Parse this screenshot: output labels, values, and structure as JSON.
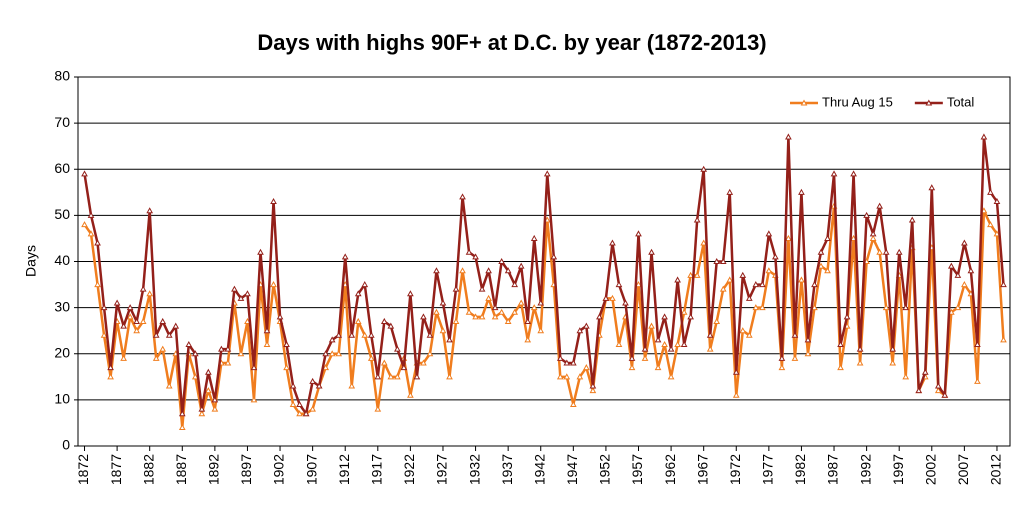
{
  "chart_data": {
    "type": "line",
    "title": "Days with highs 90F+ at D.C. by year (1872-2013)",
    "y_label": "Days",
    "legend": "upper right",
    "grid": true,
    "x": [
      1872,
      1873,
      1874,
      1875,
      1876,
      1877,
      1878,
      1879,
      1880,
      1881,
      1882,
      1883,
      1884,
      1885,
      1886,
      1887,
      1888,
      1889,
      1890,
      1891,
      1892,
      1893,
      1894,
      1895,
      1896,
      1897,
      1898,
      1899,
      1900,
      1901,
      1902,
      1903,
      1904,
      1905,
      1906,
      1907,
      1908,
      1909,
      1910,
      1911,
      1912,
      1913,
      1914,
      1915,
      1916,
      1917,
      1918,
      1919,
      1920,
      1921,
      1922,
      1923,
      1924,
      1925,
      1926,
      1927,
      1928,
      1929,
      1930,
      1931,
      1932,
      1933,
      1934,
      1935,
      1936,
      1937,
      1938,
      1939,
      1940,
      1941,
      1942,
      1943,
      1944,
      1945,
      1946,
      1947,
      1948,
      1949,
      1950,
      1951,
      1952,
      1953,
      1954,
      1955,
      1956,
      1957,
      1958,
      1959,
      1960,
      1961,
      1962,
      1963,
      1964,
      1965,
      1966,
      1967,
      1968,
      1969,
      1970,
      1971,
      1972,
      1973,
      1974,
      1975,
      1976,
      1977,
      1978,
      1979,
      1980,
      1981,
      1982,
      1983,
      1984,
      1985,
      1986,
      1987,
      1988,
      1989,
      1990,
      1991,
      1992,
      1993,
      1994,
      1995,
      1996,
      1997,
      1998,
      1999,
      2000,
      2001,
      2002,
      2003,
      2004,
      2005,
      2006,
      2007,
      2008,
      2009,
      2010,
      2011,
      2012,
      2013
    ],
    "xlim": [
      1871,
      2014
    ],
    "xticks": [
      1872,
      1877,
      1882,
      1887,
      1892,
      1897,
      1902,
      1907,
      1912,
      1917,
      1922,
      1927,
      1932,
      1937,
      1942,
      1947,
      1952,
      1957,
      1962,
      1967,
      1972,
      1977,
      1982,
      1987,
      1992,
      1997,
      2002,
      2007,
      2012
    ],
    "ylim": [
      0,
      80
    ],
    "yticks": [
      0,
      10,
      20,
      30,
      40,
      50,
      60,
      70,
      80
    ],
    "series": [
      {
        "name": "Thru Aug 15",
        "color": "#f07d1e",
        "values": [
          48,
          46,
          35,
          24,
          15,
          27,
          19,
          28,
          25,
          27,
          33,
          19,
          21,
          13,
          20,
          4,
          20,
          15,
          7,
          12,
          8,
          18,
          18,
          31,
          20,
          27,
          10,
          35,
          22,
          35,
          27,
          17,
          9,
          7,
          7,
          8,
          13,
          17,
          20,
          20,
          35,
          13,
          27,
          24,
          19,
          8,
          18,
          15,
          15,
          19,
          11,
          18,
          18,
          20,
          29,
          25,
          15,
          27,
          38,
          29,
          28,
          28,
          32,
          28,
          29,
          27,
          29,
          31,
          23,
          30,
          25,
          49,
          35,
          15,
          15,
          9,
          15,
          17,
          12,
          24,
          32,
          32,
          22,
          28,
          17,
          35,
          19,
          26,
          17,
          22,
          15,
          22,
          29,
          37,
          37,
          44,
          21,
          27,
          34,
          36,
          11,
          25,
          24,
          30,
          30,
          38,
          37,
          17,
          45,
          19,
          36,
          20,
          30,
          39,
          38,
          52,
          17,
          26,
          45,
          18,
          40,
          45,
          42,
          30,
          18,
          37,
          15,
          43,
          12,
          15,
          43,
          12,
          11,
          29,
          30,
          35,
          33,
          14,
          51,
          48,
          46,
          23
        ]
      },
      {
        "name": "Total",
        "color": "#94201a",
        "values": [
          59,
          50,
          44,
          30,
          17,
          31,
          26,
          30,
          27,
          34,
          51,
          24,
          27,
          24,
          26,
          7,
          22,
          20,
          8,
          16,
          10,
          21,
          21,
          34,
          32,
          33,
          17,
          42,
          25,
          53,
          28,
          22,
          13,
          9,
          7,
          14,
          13,
          20,
          23,
          24,
          41,
          24,
          33,
          35,
          24,
          15,
          27,
          26,
          21,
          17,
          33,
          15,
          28,
          24,
          38,
          31,
          23,
          34,
          54,
          42,
          41,
          34,
          38,
          30,
          40,
          38,
          35,
          39,
          27,
          45,
          31,
          59,
          41,
          19,
          18,
          18,
          25,
          26,
          13,
          28,
          32,
          44,
          35,
          31,
          19,
          46,
          21,
          42,
          23,
          28,
          21,
          36,
          22,
          28,
          49,
          60,
          24,
          40,
          40,
          55,
          16,
          37,
          32,
          35,
          35,
          46,
          41,
          19,
          67,
          24,
          55,
          23,
          35,
          42,
          45,
          59,
          22,
          28,
          59,
          21,
          50,
          46,
          52,
          42,
          21,
          42,
          30,
          49,
          12,
          16,
          56,
          13,
          11,
          39,
          37,
          44,
          38,
          22,
          67,
          55,
          53,
          35
        ]
      }
    ]
  }
}
